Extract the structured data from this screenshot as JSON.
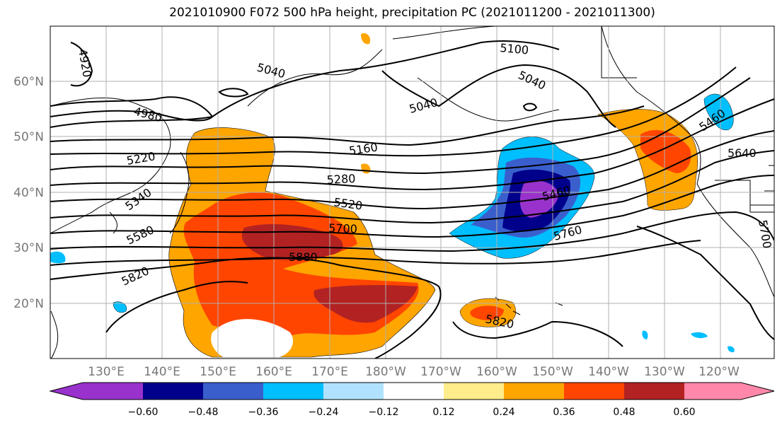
{
  "title": "2021010900 F072 500 hPa height, precipitation PC (2021011200 - 2021011300)",
  "latitudes": [
    "60°N",
    "50°N",
    "40°N",
    "30°N",
    "20°N"
  ],
  "longitudes": [
    "130°E",
    "140°E",
    "150°E",
    "160°E",
    "170°E",
    "180°W",
    "170°W",
    "160°W",
    "150°W",
    "140°W",
    "130°W",
    "120°W"
  ],
  "contour_labels": [
    "4920",
    "4980",
    "5040",
    "5040",
    "5040",
    "5100",
    "5160",
    "5220",
    "5280",
    "5340",
    "5460",
    "5460",
    "5520",
    "5580",
    "5640",
    "5700",
    "5700",
    "5760",
    "5820",
    "5820",
    "5880"
  ],
  "colorbar": {
    "ticks": [
      "−0.60",
      "−0.48",
      "−0.36",
      "−0.24",
      "−0.12",
      "0.12",
      "0.24",
      "0.36",
      "0.48",
      "0.60"
    ],
    "colors": [
      "#9932cc",
      "#00008b",
      "#3a5fcd",
      "#00bfff",
      "#b0e2ff",
      "#ffffff",
      "#ffec8b",
      "#ffa500",
      "#ff4500",
      "#b22222",
      "#ff88aa"
    ]
  }
}
